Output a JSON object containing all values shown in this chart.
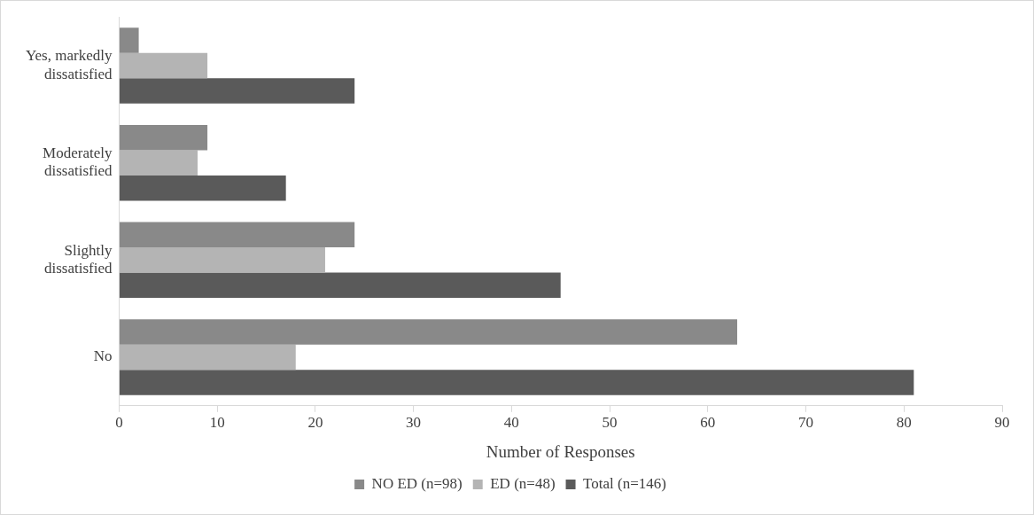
{
  "chart_data": {
    "type": "bar",
    "orientation": "horizontal",
    "xlabel": "Number of Responses",
    "categories": [
      "Yes, markedly dissatisfied",
      "Moderately dissatisfied",
      "Slightly dissatisfied",
      "No"
    ],
    "series": [
      {
        "name": "NO ED (n=98)",
        "color": "#898989",
        "values": [
          2,
          9,
          24,
          63
        ]
      },
      {
        "name": "ED (n=48)",
        "color": "#b4b4b4",
        "values": [
          9,
          8,
          21,
          18
        ]
      },
      {
        "name": "Total (n=146)",
        "color": "#5a5a5a",
        "values": [
          24,
          17,
          45,
          81
        ]
      }
    ],
    "xlim": [
      0,
      90
    ],
    "xticks": [
      0,
      10,
      20,
      30,
      40,
      50,
      60,
      70,
      80,
      90
    ],
    "grid": false,
    "legend": "bottom"
  }
}
